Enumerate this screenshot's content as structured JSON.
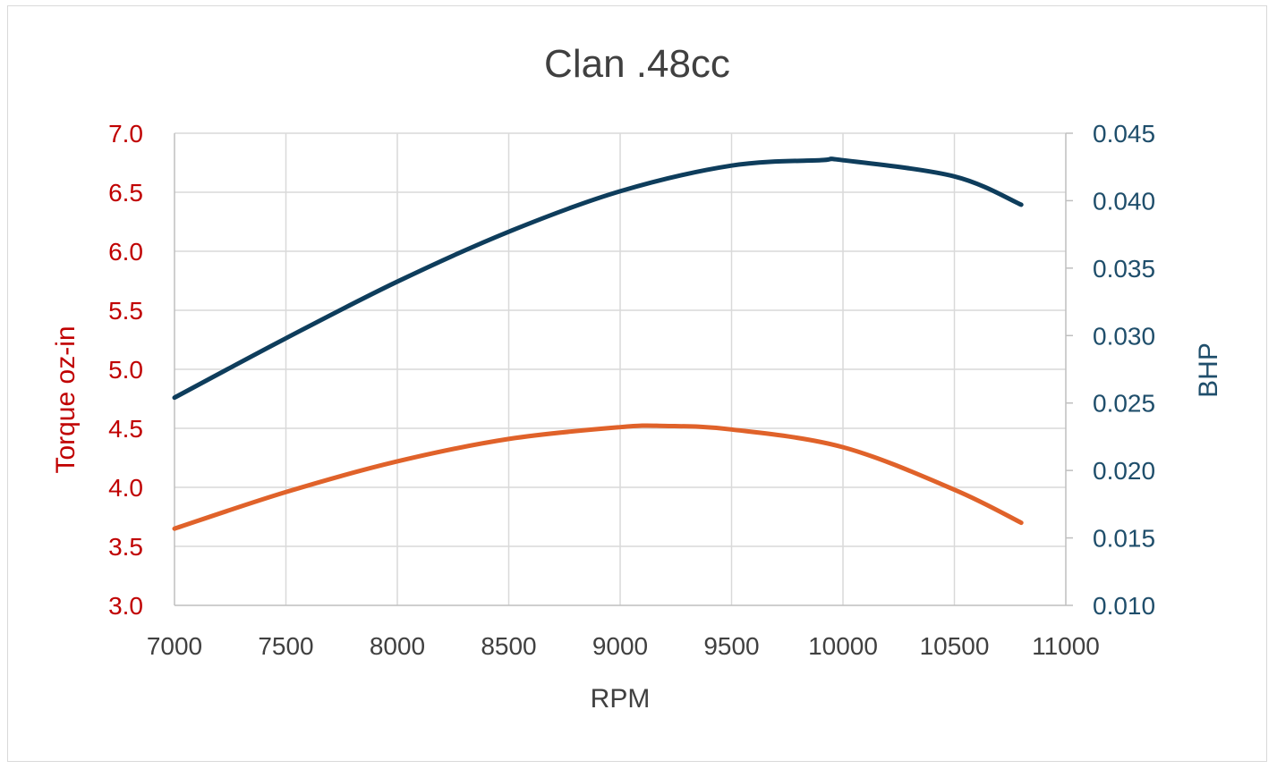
{
  "chart_data": {
    "type": "line",
    "title": "Clan .48cc",
    "xlabel": "RPM",
    "ylabel_left": "Torque oz-in",
    "ylabel_right": "BHP",
    "xlim": [
      7000,
      11000
    ],
    "x_ticks": [
      "7000",
      "7500",
      "8000",
      "8500",
      "9000",
      "9500",
      "10000",
      "10500",
      "11000"
    ],
    "ylim_left": [
      3.0,
      7.0
    ],
    "y_left_ticks": [
      "3.0",
      "3.5",
      "4.0",
      "4.5",
      "5.0",
      "5.5",
      "6.0",
      "6.5",
      "7.0"
    ],
    "ylim_right": [
      0.01,
      0.045
    ],
    "y_right_ticks": [
      "0.010",
      "0.015",
      "0.020",
      "0.025",
      "0.030",
      "0.035",
      "0.040",
      "0.045"
    ],
    "grid": true,
    "legend": "none",
    "colors": {
      "left_axis": "#c00000",
      "right_axis": "#1f4e6b",
      "torque_line": "#e0622a",
      "bhp_line": "#0e3d5c"
    },
    "series": [
      {
        "axis": "left",
        "x": [
          7000,
          7500,
          8000,
          8500,
          9000,
          9200,
          9500,
          10000,
          10500,
          10800
        ],
        "values": [
          3.65,
          3.96,
          4.22,
          4.41,
          4.51,
          4.52,
          4.49,
          4.34,
          3.98,
          3.7
        ]
      },
      {
        "axis": "right",
        "x": [
          7000,
          7500,
          8000,
          8500,
          9000,
          9500,
          9900,
          10000,
          10500,
          10800
        ],
        "values": [
          0.0254,
          0.0298,
          0.034,
          0.0377,
          0.0407,
          0.0426,
          0.043,
          0.043,
          0.0418,
          0.0397
        ]
      }
    ]
  }
}
